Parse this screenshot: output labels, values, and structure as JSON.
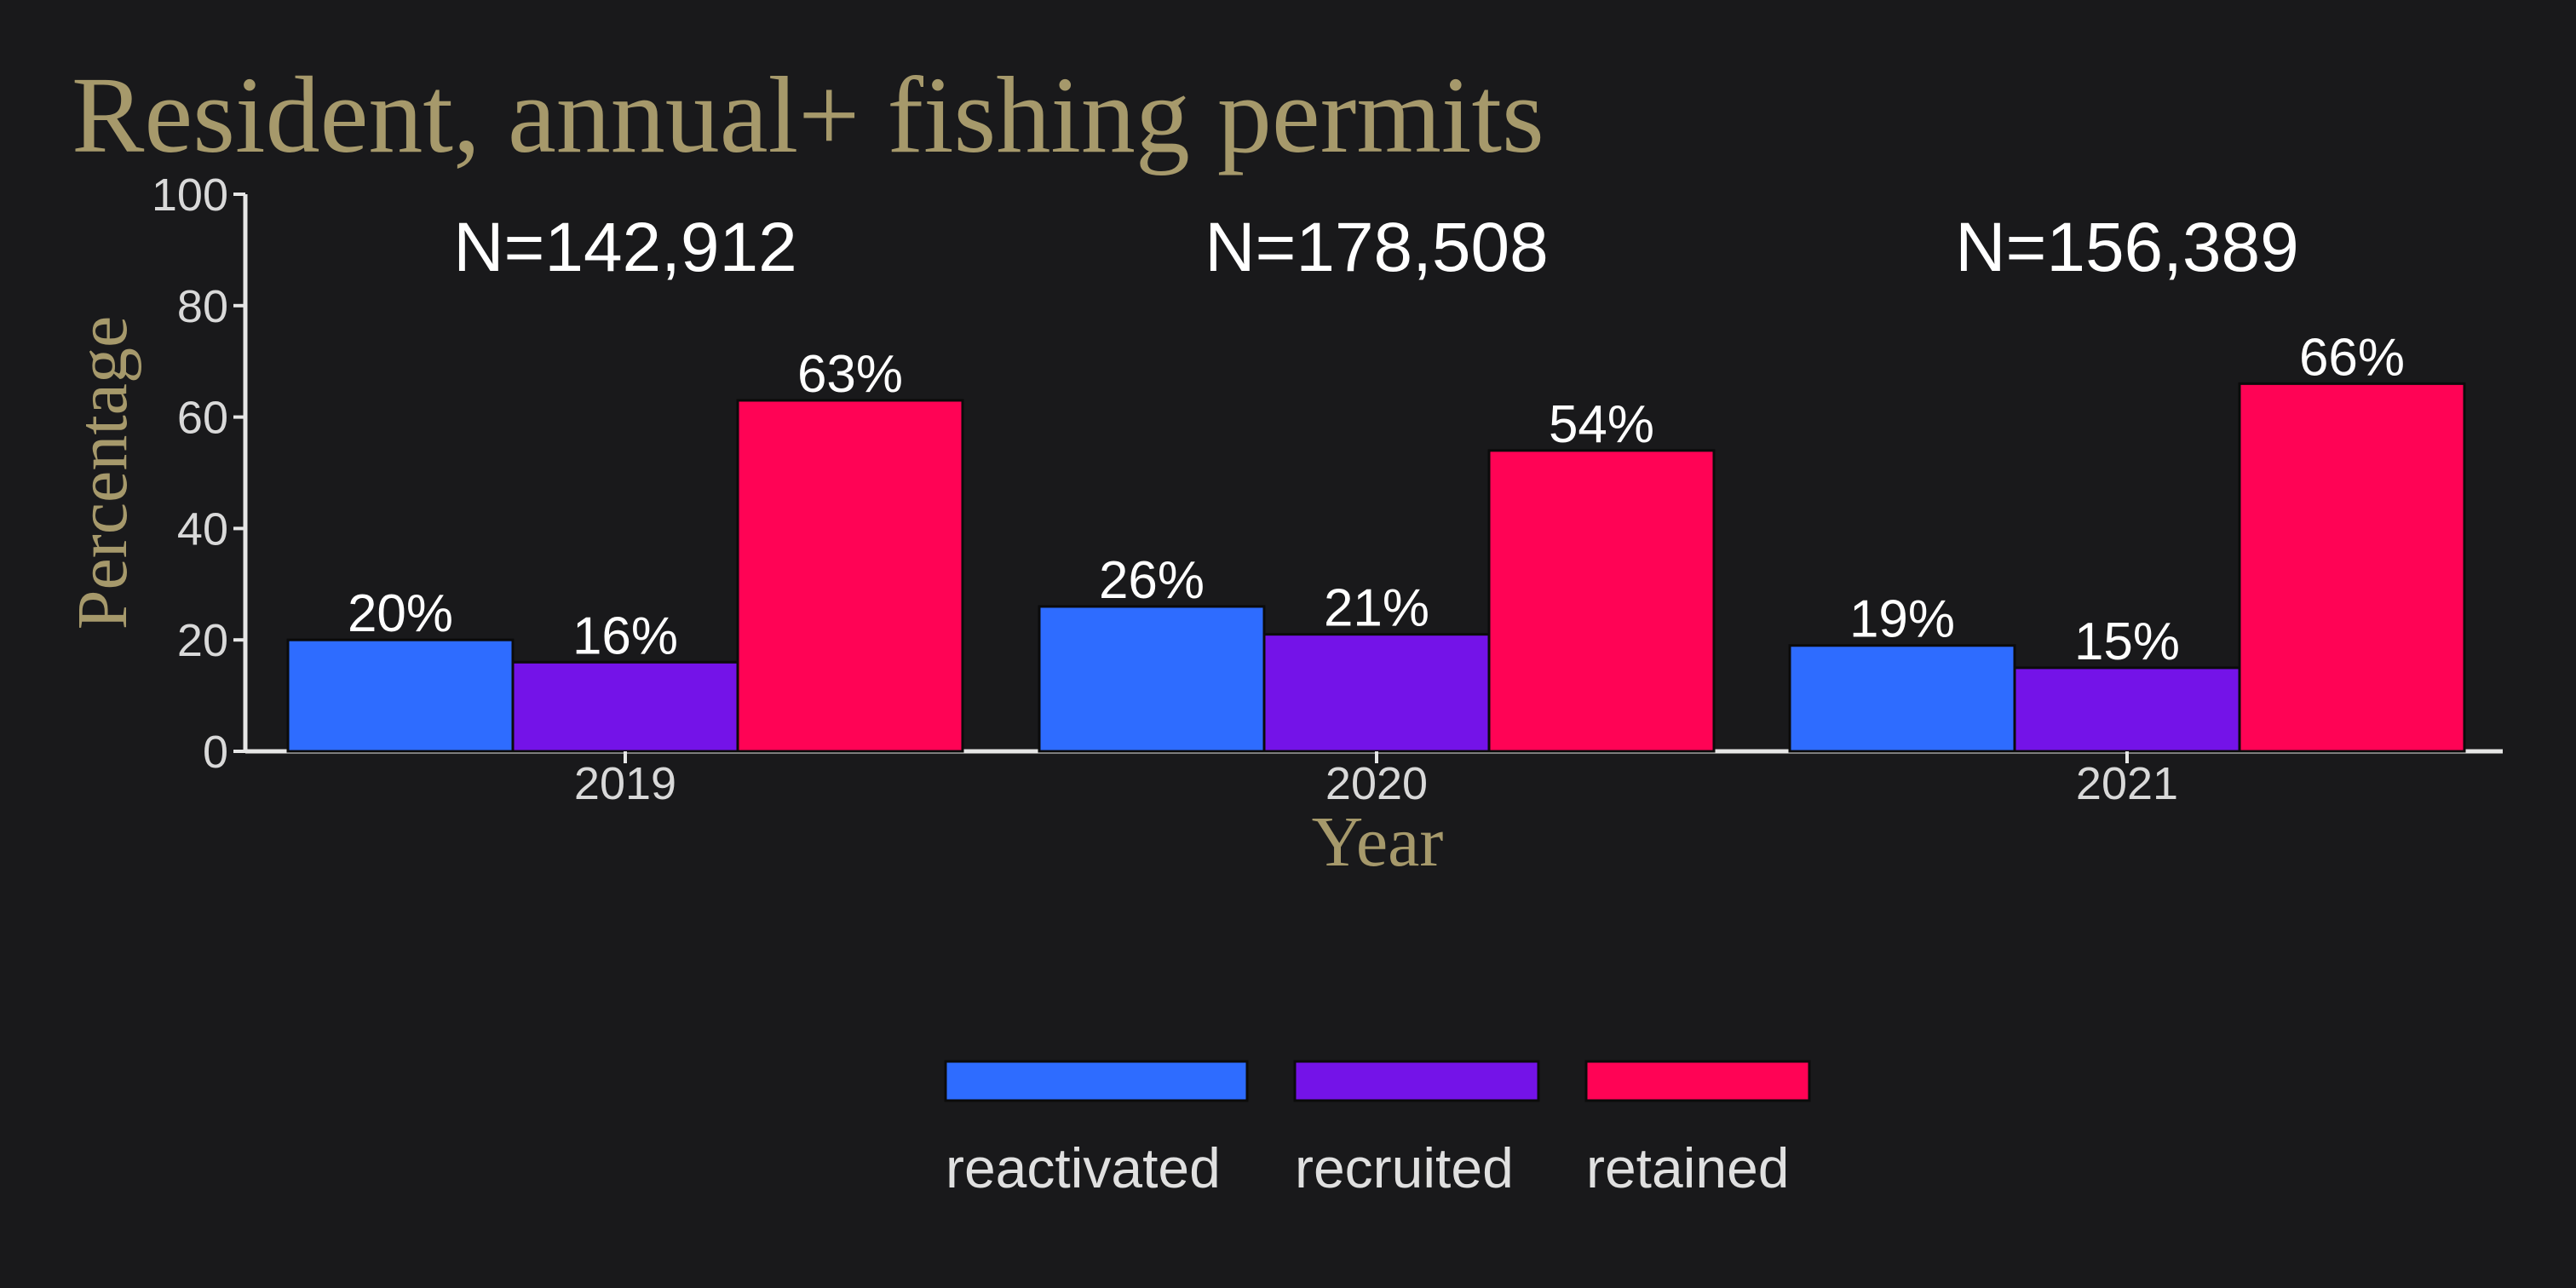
{
  "colors": {
    "background": "#19191b",
    "title": "#a6996b",
    "axis": "#e6e6e6",
    "bar_outline": "#0b0b0b"
  },
  "chart_data": {
    "type": "bar",
    "title": "Resident, annual+ fishing permits",
    "xlabel": "Year",
    "ylabel": "Percentage",
    "ylim": [
      0,
      100
    ],
    "yticks": [
      0,
      20,
      40,
      60,
      80,
      100
    ],
    "categories": [
      "2019",
      "2020",
      "2021"
    ],
    "group_labels": [
      "N=142,912",
      "N=178,508",
      "N=156,389"
    ],
    "series": [
      {
        "name": "reactivated",
        "color": "#2e6cff",
        "values": [
          20,
          26,
          19
        ],
        "labels": [
          "20%",
          "26%",
          "19%"
        ]
      },
      {
        "name": "recruited",
        "color": "#7413e8",
        "values": [
          16,
          21,
          15
        ],
        "labels": [
          "16%",
          "21%",
          "15%"
        ]
      },
      {
        "name": "retained",
        "color": "#ff0355",
        "values": [
          63,
          54,
          66
        ],
        "labels": [
          "63%",
          "54%",
          "66%"
        ]
      }
    ],
    "legend_position": "bottom",
    "grid": false
  }
}
